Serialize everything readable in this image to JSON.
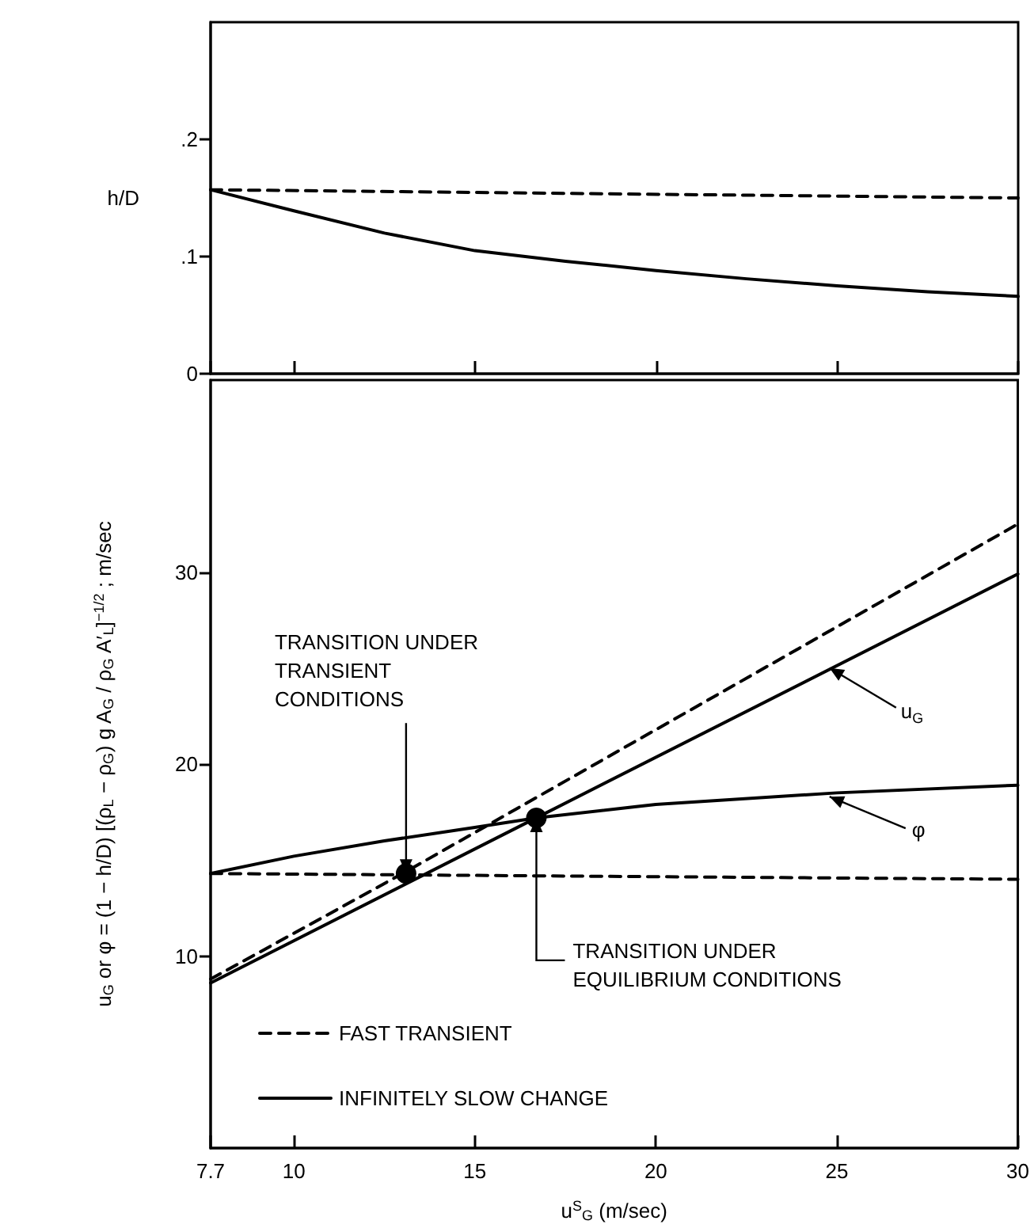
{
  "chart_data": [
    {
      "type": "line",
      "ylabel": "h/D",
      "xlim": [
        7.7,
        30
      ],
      "xticks": [
        7.7,
        10,
        15,
        20,
        25,
        30
      ],
      "ylim": [
        0,
        0.3
      ],
      "yticks": [
        0,
        {
          "value": 0.1,
          "label": ".1"
        },
        {
          "value": 0.2,
          "label": ".2"
        }
      ],
      "tick_labels": "y",
      "series": [
        {
          "color": "#000000",
          "line_style": "dashed",
          "x": [
            7.7,
            30
          ],
          "values": [
            0.157,
            0.15
          ]
        },
        {
          "color": "#000000",
          "line_style": "solid",
          "x": [
            7.7,
            10,
            12.5,
            15,
            17.5,
            20,
            22.5,
            25,
            27.5,
            30
          ],
          "values": [
            0.157,
            0.139,
            0.12,
            0.105,
            0.096,
            0.088,
            0.081,
            0.075,
            0.07,
            0.066
          ]
        }
      ]
    },
    {
      "type": "line",
      "xlabel": "u$^{S}$$_{G}$ (m/sec)",
      "ylabel": "u$_{G}$ or φ = (1 − h/D) [(ρ$_{L}$ − ρ$_{G}$) g A$_{G}$ / ρ$_{G}$ A′$_{L}$]$^{−1/2}$ ; m/sec",
      "xlim": [
        7.7,
        30
      ],
      "xticks": [
        7.7,
        10,
        15,
        20,
        25,
        30
      ],
      "ylim": [
        0,
        40
      ],
      "yticks": [
        10,
        20,
        30
      ],
      "legend": "bottom left",
      "series": [
        {
          "name": "FAST TRANSIENT",
          "color": "#000000",
          "line_style": "dashed",
          "x": [
            7.7,
            13.1,
            30
          ],
          "values": [
            8.8,
            14.4,
            32.5
          ]
        },
        {
          "name": "INFINITELY SLOW CHANGE",
          "color": "#000000",
          "line_style": "solid",
          "x": [
            7.7,
            16.7,
            30
          ],
          "values": [
            8.6,
            17.2,
            29.9
          ]
        },
        {
          "color": "#000000",
          "line_style": "dashed",
          "x": [
            7.7,
            30
          ],
          "values": [
            14.3,
            14.0
          ]
        },
        {
          "color": "#000000",
          "line_style": "solid",
          "x": [
            7.7,
            10,
            12.5,
            15,
            16.7,
            20,
            25,
            30
          ],
          "values": [
            14.3,
            15.2,
            16.0,
            16.7,
            17.2,
            17.9,
            18.5,
            18.9
          ]
        },
        {
          "type": "scatter",
          "marker": "circle",
          "color": "#000000",
          "x": [
            13.1,
            16.7
          ],
          "values": [
            14.3,
            17.2
          ]
        }
      ],
      "annotations": [
        {
          "text": "TRANSITION UNDER TRANSIENT CONDITIONS",
          "x": 13.1,
          "y": 14.3
        },
        {
          "text": "TRANSITION UNDER EQUILIBRIUM CONDITIONS",
          "x": 16.7,
          "y": 17.2
        },
        {
          "text": "u$_{G}$",
          "x": 24.8,
          "y": 25.0
        },
        {
          "text": "φ",
          "x": 24.8,
          "y": 18.3
        }
      ]
    }
  ]
}
